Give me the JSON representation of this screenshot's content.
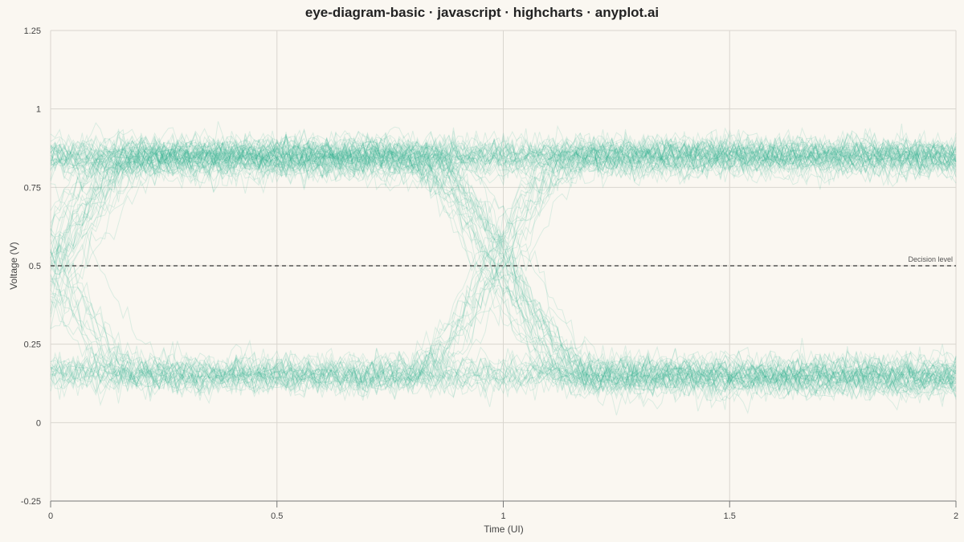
{
  "chart_data": {
    "type": "line",
    "title": "eye-diagram-basic · javascript · highcharts · anyplot.ai",
    "xlabel": "Time (UI)",
    "ylabel": "Voltage (V)",
    "xlim": [
      0,
      2
    ],
    "ylim": [
      -0.25,
      1.25
    ],
    "x_ticks": [
      "0",
      "0.5",
      "1",
      "1.5",
      "2"
    ],
    "y_ticks": [
      "-0.25",
      "0",
      "0.25",
      "0.5",
      "0.75",
      "1",
      "1.25"
    ],
    "grid": true,
    "legend": "none",
    "color": "#2bae8a",
    "trace_opacity": 0.15,
    "levels": {
      "high": 0.85,
      "low": 0.15
    },
    "noise_amplitude": 0.035,
    "crossing_times": [
      0.0,
      1.0
    ],
    "transition_duration": 0.2,
    "trace_count": 100,
    "decision_level": {
      "value": 0.5,
      "label": "Decision level"
    }
  }
}
